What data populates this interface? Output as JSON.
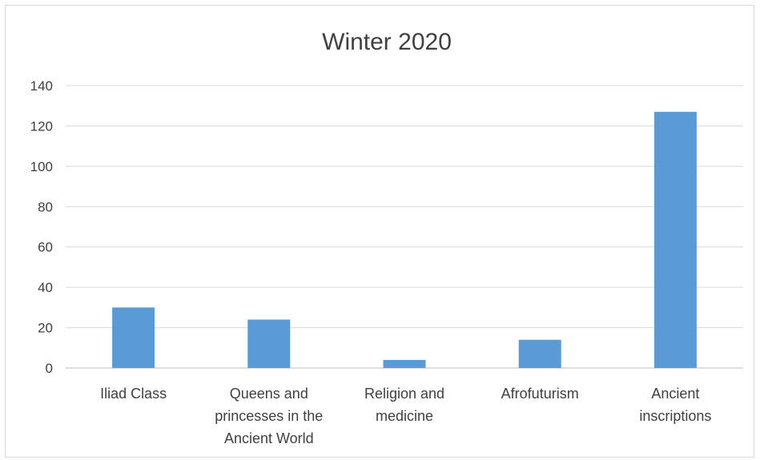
{
  "chart_data": {
    "type": "bar",
    "title": "Winter 2020",
    "xlabel": "",
    "ylabel": "",
    "categories": [
      [
        "Iliad Class"
      ],
      [
        "Queens and",
        "princesses in the",
        "Ancient World"
      ],
      [
        "Religion and",
        "medicine"
      ],
      [
        "Afrofuturism"
      ],
      [
        "Ancient",
        "inscriptions"
      ]
    ],
    "values": [
      30,
      24,
      4,
      14,
      127
    ],
    "ylim": [
      0,
      140
    ],
    "yticks": [
      0,
      20,
      40,
      60,
      80,
      100,
      120,
      140
    ],
    "grid": true,
    "legend": "none",
    "bar_color": "#5b9bd5"
  }
}
